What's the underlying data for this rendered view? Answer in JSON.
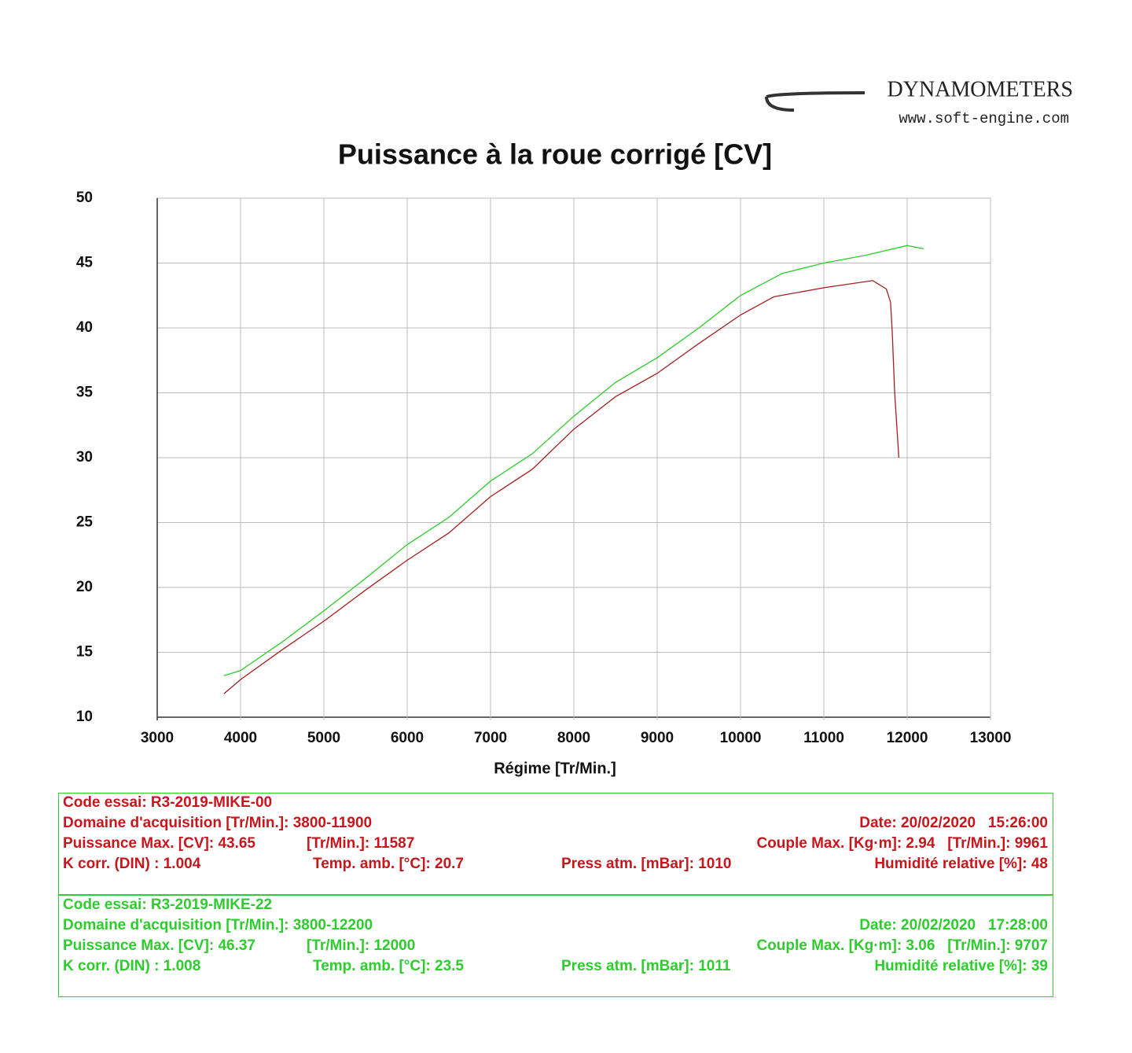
{
  "header": {
    "brand": "DYNAMOMETERS",
    "url": "www.soft-engine.com"
  },
  "chart_data": {
    "type": "line",
    "title": "Puissance à la roue corrigé [CV]",
    "x_label": "Régime [Tr/Min.]",
    "xlim": [
      3000,
      13000
    ],
    "xticks": [
      3000,
      4000,
      5000,
      6000,
      7000,
      8000,
      9000,
      10000,
      11000,
      12000,
      13000
    ],
    "ylim": [
      10,
      50
    ],
    "yticks": [
      10,
      15,
      20,
      25,
      30,
      35,
      40,
      45,
      50
    ],
    "grid": true,
    "series": [
      {
        "color": "#2ecc2e",
        "x": [
          3800,
          4000,
          4500,
          5000,
          5500,
          6000,
          6500,
          7000,
          7500,
          8000,
          8500,
          9000,
          9500,
          10000,
          10500,
          11000,
          11500,
          12000,
          12200
        ],
        "values": [
          13.2,
          13.6,
          15.8,
          18.2,
          20.7,
          23.3,
          25.4,
          28.2,
          30.3,
          33.2,
          35.8,
          37.7,
          40.0,
          42.5,
          44.2,
          45.0,
          45.6,
          46.35,
          46.1
        ]
      },
      {
        "color": "#a31f1f",
        "x": [
          3800,
          4000,
          4500,
          5000,
          5500,
          6000,
          6500,
          7000,
          7500,
          8000,
          8500,
          9000,
          9500,
          10000,
          10400,
          11000,
          11587,
          11750,
          11800,
          11820,
          11850,
          11900
        ],
        "values": [
          11.8,
          12.9,
          15.2,
          17.4,
          19.8,
          22.1,
          24.2,
          27.0,
          29.1,
          32.2,
          34.7,
          36.5,
          38.8,
          41.0,
          42.4,
          43.1,
          43.65,
          43.0,
          42.0,
          39.8,
          35.0,
          30.0
        ]
      }
    ]
  },
  "tests": [
    {
      "color": "#c8161d",
      "code": "Code essai: R3-2019-MIKE-00",
      "domain": "Domaine d'acquisition [Tr/Min.]: 3800-11900",
      "date": "Date: 20/02/2020   15:26:00",
      "power": "Puissance Max. [CV]: 43.65",
      "power_rpm": "[Tr/Min.]: 11587",
      "torque": "Couple Max. [Kg·m]: 2.94   [Tr/Min.]: 9961",
      "kcorr": "K corr. (DIN) : 1.004",
      "temp": "Temp. amb. [°C]: 20.7",
      "pressure": "Press atm. [mBar]: 1010",
      "humidity": "Humidité relative [%]: 48"
    },
    {
      "color": "#2ecc2e",
      "code": "Code essai: R3-2019-MIKE-22",
      "domain": "Domaine d'acquisition [Tr/Min.]: 3800-12200",
      "date": "Date: 20/02/2020   17:28:00",
      "power": "Puissance Max. [CV]: 46.37",
      "power_rpm": "[Tr/Min.]: 12000",
      "torque": "Couple Max. [Kg·m]: 3.06   [Tr/Min.]: 9707",
      "kcorr": "K corr. (DIN) : 1.008",
      "temp": "Temp. amb. [°C]: 23.5",
      "pressure": "Press atm. [mBar]: 1011",
      "humidity": "Humidité relative [%]: 39"
    }
  ]
}
